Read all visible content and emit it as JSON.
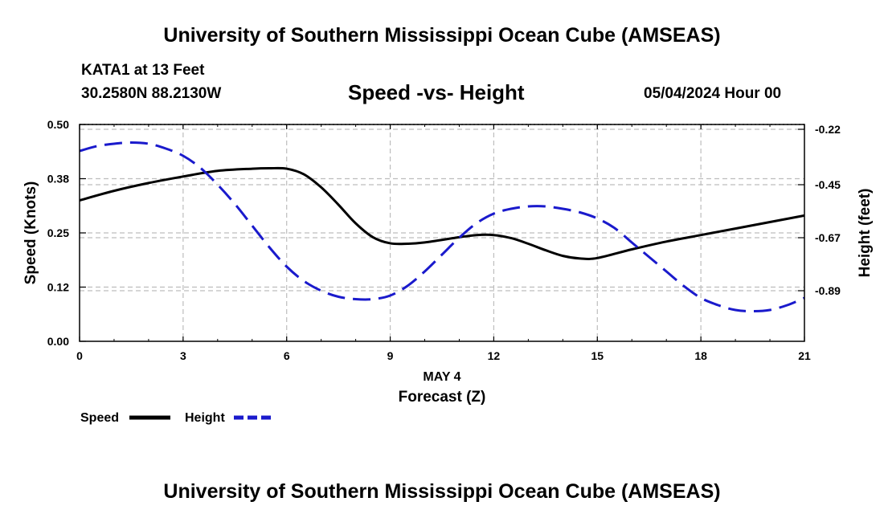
{
  "header": {
    "title": "University of Southern Mississippi Ocean Cube (AMSEAS)",
    "station": "KATA1 at 13 Feet",
    "coords": "30.2580N  88.2130W",
    "subtitle": "Speed -vs- Height",
    "datetime": "05/04/2024 Hour 00"
  },
  "footer": {
    "title": "University of Southern Mississippi Ocean Cube (AMSEAS)"
  },
  "colors": {
    "speed": "#000000",
    "height": "#1a1acc",
    "grid": "#bdbdbd"
  },
  "chart_data": {
    "type": "line",
    "title": "Speed -vs- Height",
    "xlabel": "Forecast (Z)",
    "date_label": "MAY 4",
    "ylabel": "Speed (Knots)",
    "y2label": "Height (feet)",
    "xlim": [
      0,
      21
    ],
    "ylim": [
      0,
      0.5
    ],
    "y2lim": [
      -1.1,
      -0.2
    ],
    "x_ticks": [
      0,
      3,
      6,
      9,
      12,
      15,
      18,
      21
    ],
    "y_ticks": [
      {
        "value": 0.0,
        "label": "0.00"
      },
      {
        "value": 0.125,
        "label": "0.12"
      },
      {
        "value": 0.25,
        "label": "0.25"
      },
      {
        "value": 0.375,
        "label": "0.38"
      },
      {
        "value": 0.5,
        "label": "0.50"
      }
    ],
    "y2_ticks": [
      {
        "value": -0.22,
        "label": "-0.22"
      },
      {
        "value": -0.45,
        "label": "-0.45"
      },
      {
        "value": -0.67,
        "label": "-0.67"
      },
      {
        "value": -0.89,
        "label": "-0.89"
      }
    ],
    "grid": true,
    "legend_position": "bottom-left",
    "series": [
      {
        "name": "Speed",
        "axis": "left",
        "style": "solid",
        "x": [
          0,
          1,
          2,
          3,
          4,
          5,
          5.5,
          6,
          6.5,
          7,
          7.5,
          8,
          8.5,
          9,
          9.5,
          10,
          11,
          11.5,
          12,
          12.5,
          13,
          13.5,
          14,
          14.5,
          15,
          16,
          17,
          18,
          19,
          20,
          21
        ],
        "values": [
          0.325,
          0.347,
          0.365,
          0.38,
          0.393,
          0.398,
          0.399,
          0.398,
          0.385,
          0.355,
          0.315,
          0.272,
          0.24,
          0.226,
          0.225,
          0.228,
          0.24,
          0.245,
          0.245,
          0.238,
          0.225,
          0.21,
          0.197,
          0.191,
          0.192,
          0.212,
          0.23,
          0.245,
          0.26,
          0.275,
          0.29
        ]
      },
      {
        "name": "Height",
        "axis": "right",
        "style": "dashed",
        "x": [
          0,
          0.5,
          1,
          1.5,
          2,
          2.5,
          3,
          3.5,
          4,
          4.5,
          5,
          5.5,
          6,
          6.5,
          7,
          7.5,
          8,
          8.5,
          9,
          9.5,
          10,
          10.5,
          11,
          11.5,
          12,
          12.5,
          13,
          13.5,
          14,
          14.5,
          15,
          15.5,
          16,
          16.5,
          17,
          17.5,
          18,
          18.5,
          19,
          19.5,
          20,
          20.5,
          21
        ],
        "values": [
          -0.31,
          -0.29,
          -0.28,
          -0.275,
          -0.28,
          -0.3,
          -0.33,
          -0.38,
          -0.45,
          -0.53,
          -0.62,
          -0.71,
          -0.79,
          -0.85,
          -0.89,
          -0.915,
          -0.925,
          -0.925,
          -0.91,
          -0.87,
          -0.81,
          -0.74,
          -0.67,
          -0.61,
          -0.57,
          -0.55,
          -0.54,
          -0.54,
          -0.55,
          -0.565,
          -0.59,
          -0.63,
          -0.69,
          -0.75,
          -0.81,
          -0.87,
          -0.92,
          -0.95,
          -0.97,
          -0.975,
          -0.97,
          -0.95,
          -0.92
        ]
      }
    ]
  }
}
